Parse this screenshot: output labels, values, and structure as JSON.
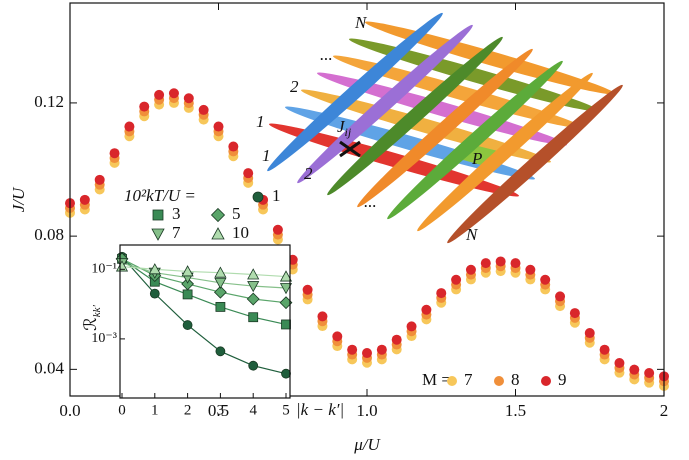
{
  "chart_data": [
    {
      "type": "scatter",
      "xlabel": "μ/U",
      "ylabel": "J/U",
      "xlim": [
        0,
        2
      ],
      "ylim": [
        0.032,
        0.15
      ],
      "xticks": [
        {
          "value": 0,
          "label": "0.0"
        },
        0.5,
        {
          "value": 1,
          "label": "1.0"
        },
        1.5,
        2
      ],
      "yticks": [
        0.04,
        0.08,
        0.12
      ],
      "legend_title": "M =",
      "legend": "lower right",
      "x": [
        0,
        0.05,
        0.1,
        0.15,
        0.2,
        0.25,
        0.3,
        0.35,
        0.4,
        0.45,
        0.5,
        0.55,
        0.6,
        0.65,
        0.7,
        0.75,
        0.8,
        0.85,
        0.9,
        0.95,
        1,
        1.05,
        1.1,
        1.15,
        1.2,
        1.25,
        1.3,
        1.35,
        1.4,
        1.45,
        1.5,
        1.55,
        1.6,
        1.65,
        1.7,
        1.75,
        1.8,
        1.85,
        1.9,
        1.95,
        2
      ],
      "series": [
        {
          "name": "7",
          "color": "#f7c75a",
          "values": [
            0.087,
            0.088,
            0.094,
            0.102,
            0.11,
            0.116,
            0.1195,
            0.12,
            0.1185,
            0.115,
            0.11,
            0.104,
            0.096,
            0.088,
            0.079,
            0.07,
            0.061,
            0.053,
            0.047,
            0.043,
            0.042,
            0.043,
            0.046,
            0.05,
            0.055,
            0.06,
            0.064,
            0.067,
            0.069,
            0.0695,
            0.069,
            0.067,
            0.064,
            0.059,
            0.054,
            0.048,
            0.043,
            0.039,
            0.037,
            0.036,
            0.035
          ]
        },
        {
          "name": "8",
          "color": "#f08f3a",
          "values": [
            0.088,
            0.089,
            0.095,
            0.103,
            0.111,
            0.117,
            0.1205,
            0.121,
            0.1195,
            0.116,
            0.111,
            0.105,
            0.097,
            0.089,
            0.08,
            0.071,
            0.062,
            0.054,
            0.048,
            0.044,
            0.043,
            0.044,
            0.047,
            0.051,
            0.056,
            0.061,
            0.065,
            0.068,
            0.07,
            0.0705,
            0.07,
            0.068,
            0.065,
            0.06,
            0.055,
            0.049,
            0.044,
            0.04,
            0.038,
            0.037,
            0.036
          ]
        },
        {
          "name": "9",
          "color": "#d9262b",
          "values": [
            0.089,
            0.09,
            0.096,
            0.104,
            0.112,
            0.118,
            0.1215,
            0.122,
            0.1205,
            0.117,
            0.112,
            0.106,
            0.098,
            0.09,
            0.081,
            0.072,
            0.063,
            0.055,
            0.049,
            0.045,
            0.044,
            0.045,
            0.048,
            0.052,
            0.057,
            0.062,
            0.066,
            0.069,
            0.071,
            0.0715,
            0.071,
            0.069,
            0.066,
            0.061,
            0.056,
            0.05,
            0.045,
            0.041,
            0.039,
            0.038,
            0.037
          ]
        }
      ]
    },
    {
      "type": "line",
      "xlabel": "|k − k′|",
      "ylabel": "ℛ",
      "ylabel_sub": "kk′",
      "log_y": true,
      "xlim": [
        0,
        5
      ],
      "ylim": [
        2e-05,
        0.5
      ],
      "xticks": [
        0,
        1,
        2,
        3,
        4,
        5
      ],
      "yticks": [
        {
          "value": 0.1,
          "label": "10⁻¹"
        },
        {
          "value": 0.001,
          "label": "10⁻³"
        }
      ],
      "legend_title": "10²kT/U =",
      "x": [
        0,
        1,
        2,
        3,
        4,
        5
      ],
      "series": [
        {
          "name": "1",
          "color": "#1f5e3c",
          "marker": "circle",
          "values": [
            0.23,
            0.02,
            0.0025,
            0.00044,
            0.00017,
            0.0001
          ]
        },
        {
          "name": "3",
          "color": "#3a8a55",
          "marker": "square",
          "values": [
            0.2,
            0.044,
            0.019,
            0.0083,
            0.0042,
            0.0026
          ]
        },
        {
          "name": "5",
          "color": "#5aa56a",
          "marker": "diamond",
          "values": [
            0.2,
            0.066,
            0.038,
            0.022,
            0.014,
            0.011
          ]
        },
        {
          "name": "7",
          "color": "#86c08a",
          "marker": "triangle-down",
          "values": [
            0.15,
            0.08,
            0.058,
            0.041,
            0.033,
            0.029
          ]
        },
        {
          "name": "10",
          "color": "#b0dcae",
          "marker": "triangle-up",
          "values": [
            0.12,
            0.1,
            0.087,
            0.08,
            0.071,
            0.062
          ]
        }
      ]
    }
  ],
  "illustration": {
    "labels": [
      "N",
      "...",
      "2",
      "1",
      "1",
      "2",
      "...",
      "N"
    ],
    "coupling": "J",
    "coupling_sub": "ij",
    "plaquette": "P"
  }
}
